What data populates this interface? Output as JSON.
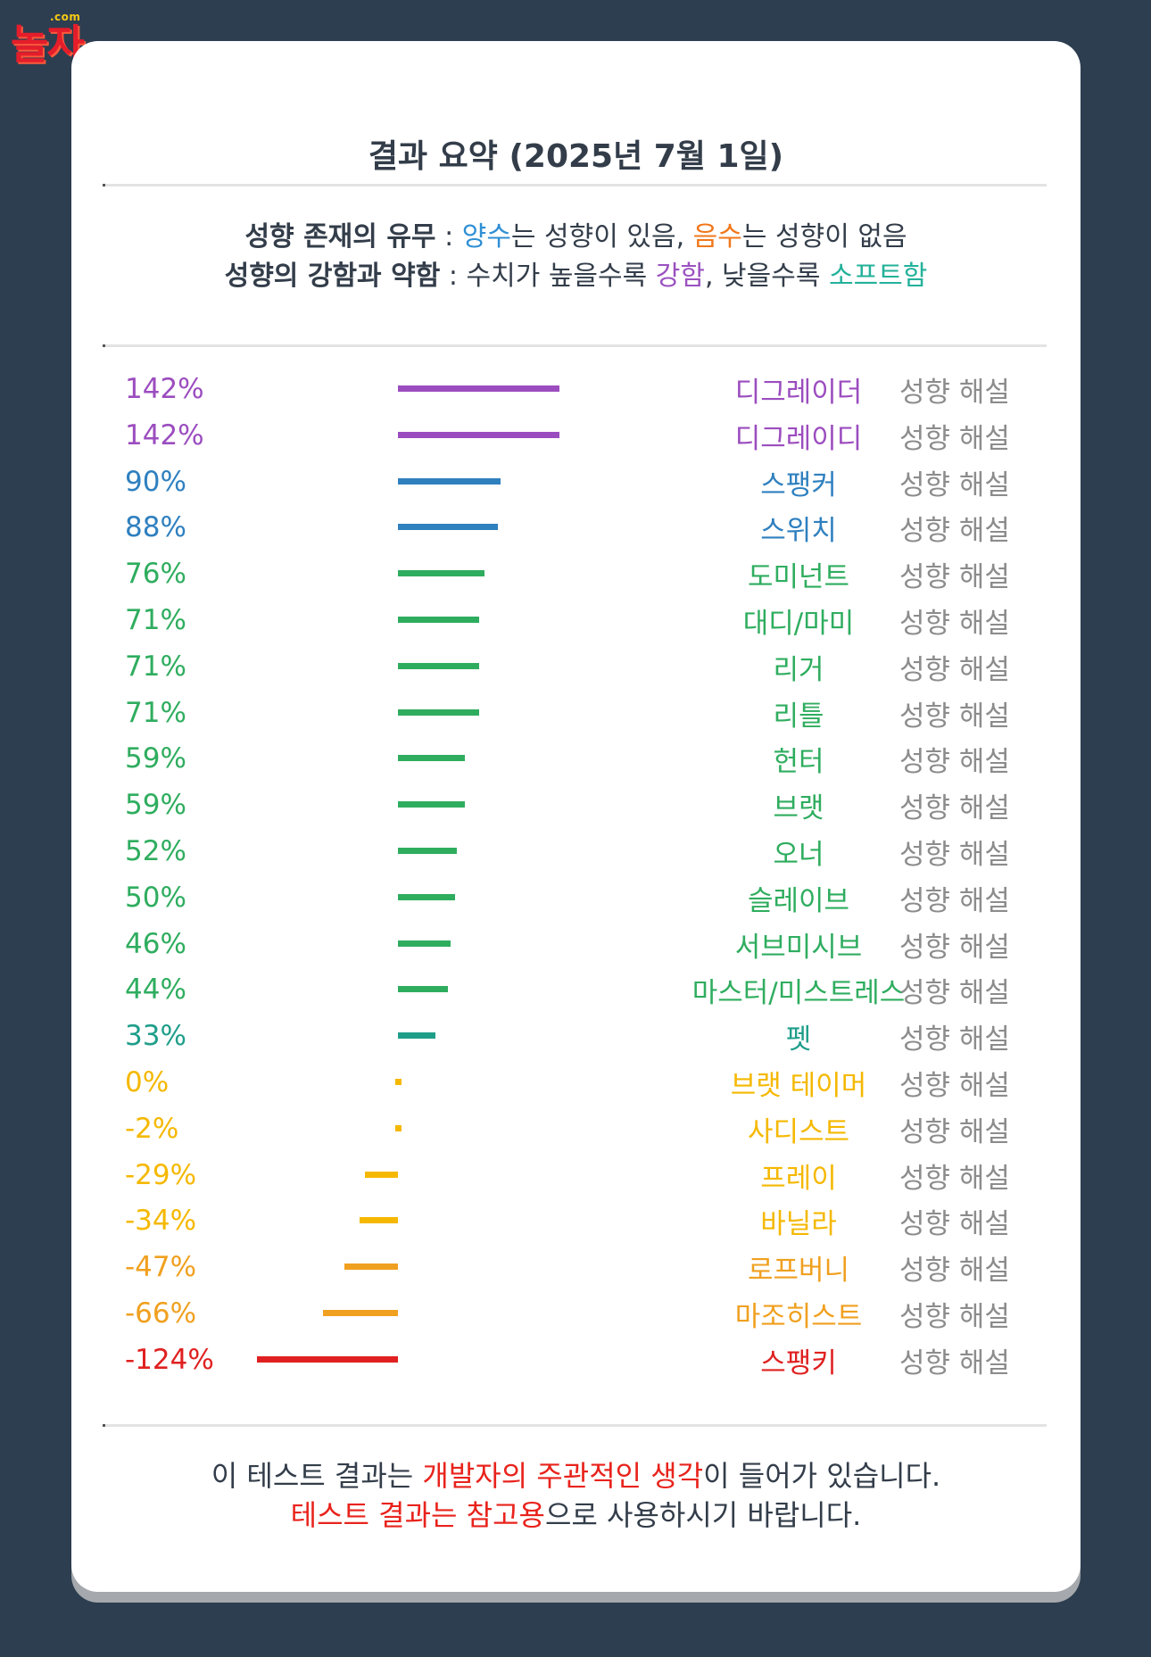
{
  "logo": {
    "top": ".com",
    "word": "놀자"
  },
  "title": "결과 요약 (2025년 7월 1일)",
  "legend": {
    "line1_label": "성향 존재의 유무",
    "line1_sep": " : ",
    "line1_positive": "양수",
    "line1_text1": "는 성향이 있음, ",
    "line1_negative": "음수",
    "line1_text2": "는 성향이 없음",
    "line2_label": "성향의 강함과 약함",
    "line2_sep": " : 수치가 높을수록 ",
    "line2_strong": "강함",
    "line2_text": ", 낮을수록 ",
    "line2_soft": "소프트함"
  },
  "rows": [
    {
      "value": 142,
      "label": "142%",
      "name": "디그레이더",
      "color": "#9b4dbf",
      "link": "성향 해설"
    },
    {
      "value": 142,
      "label": "142%",
      "name": "디그레이디",
      "color": "#9b4dbf",
      "link": "성향 해설"
    },
    {
      "value": 90,
      "label": "90%",
      "name": "스팽커",
      "color": "#2f80bf",
      "link": "성향 해설"
    },
    {
      "value": 88,
      "label": "88%",
      "name": "스위치",
      "color": "#2f80bf",
      "link": "성향 해설"
    },
    {
      "value": 76,
      "label": "76%",
      "name": "도미넌트",
      "color": "#2fad5f",
      "link": "성향 해설"
    },
    {
      "value": 71,
      "label": "71%",
      "name": "대디/마미",
      "color": "#2fad5f",
      "link": "성향 해설"
    },
    {
      "value": 71,
      "label": "71%",
      "name": "리거",
      "color": "#2fad5f",
      "link": "성향 해설"
    },
    {
      "value": 71,
      "label": "71%",
      "name": "리틀",
      "color": "#2fad5f",
      "link": "성향 해설"
    },
    {
      "value": 59,
      "label": "59%",
      "name": "헌터",
      "color": "#2fad5f",
      "link": "성향 해설"
    },
    {
      "value": 59,
      "label": "59%",
      "name": "브랫",
      "color": "#2fad5f",
      "link": "성향 해설"
    },
    {
      "value": 52,
      "label": "52%",
      "name": "오너",
      "color": "#2fad5f",
      "link": "성향 해설"
    },
    {
      "value": 50,
      "label": "50%",
      "name": "슬레이브",
      "color": "#2fad5f",
      "link": "성향 해설"
    },
    {
      "value": 46,
      "label": "46%",
      "name": "서브미시브",
      "color": "#2fad5f",
      "link": "성향 해설"
    },
    {
      "value": 44,
      "label": "44%",
      "name": "마스터/미스트레스",
      "color": "#2fad5f",
      "link": "성향 해설"
    },
    {
      "value": 33,
      "label": "33%",
      "name": "펫",
      "color": "#1f9e8a",
      "link": "성향 해설"
    },
    {
      "value": 0,
      "label": "0%",
      "name": "브랫 테이머",
      "color": "#f5b800",
      "link": "성향 해설"
    },
    {
      "value": -2,
      "label": "-2%",
      "name": "사디스트",
      "color": "#f5b800",
      "link": "성향 해설"
    },
    {
      "value": -29,
      "label": "-29%",
      "name": "프레이",
      "color": "#f5b800",
      "link": "성향 해설"
    },
    {
      "value": -34,
      "label": "-34%",
      "name": "바닐라",
      "color": "#f5b800",
      "link": "성향 해설"
    },
    {
      "value": -47,
      "label": "-47%",
      "name": "로프버니",
      "color": "#f0a020",
      "link": "성향 해설"
    },
    {
      "value": -66,
      "label": "-66%",
      "name": "마조히스트",
      "color": "#f0a020",
      "link": "성향 해설"
    },
    {
      "value": -124,
      "label": "-124%",
      "name": "스팽키",
      "color": "#e02020",
      "link": "성향 해설"
    }
  ],
  "footer": {
    "line1_a": "이 테스트 결과는 ",
    "line1_red": "개발자의 주관적인 생각",
    "line1_b": "이 들어가 있습니다.",
    "line2_red": "테스트 결과는 참고용",
    "line2_b": "으로 사용하시기 바랍니다."
  }
}
